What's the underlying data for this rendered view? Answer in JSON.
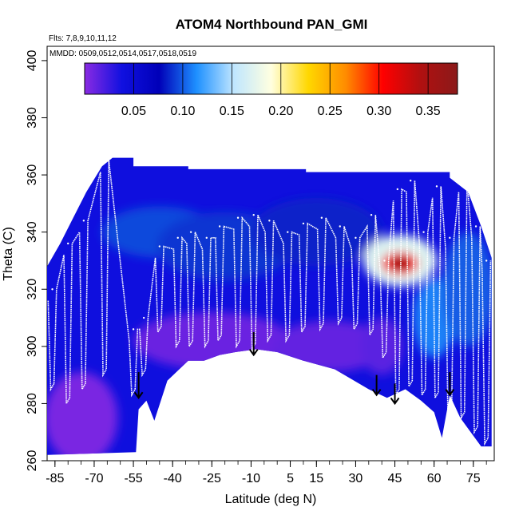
{
  "chart_data": {
    "type": "heatmap",
    "title": "ATOM4 Northbound PAN_GMI",
    "subtitle_lines": [
      "Flts: 7,8,9,10,11,12",
      "MMDD: 0509,0512,0514,0517,0518,0519"
    ],
    "xlabel": "Latitude (deg N)",
    "ylabel": "Theta (C)",
    "xlim": [
      -88,
      83
    ],
    "ylim": [
      260,
      405
    ],
    "x_ticks": [
      -85,
      -70,
      -55,
      -40,
      -25,
      -10,
      5,
      15,
      30,
      45,
      60,
      75
    ],
    "y_ticks": [
      260,
      280,
      300,
      320,
      340,
      360,
      380,
      400
    ],
    "colorbar": {
      "range": [
        0.0,
        0.38
      ],
      "ticks": [
        0.05,
        0.1,
        0.15,
        0.2,
        0.25,
        0.3,
        0.35
      ],
      "tick_labels": [
        "0.05",
        "0.10",
        "0.15",
        "0.20",
        "0.25",
        "0.30",
        "0.35"
      ],
      "colors": [
        "#8a2be2",
        "#1010e0",
        "#0000b8",
        "#1e90ff",
        "#bfe6ff",
        "#ffffe0",
        "#ffd700",
        "#ff8c00",
        "#ff0000",
        "#b01010",
        "#8b1a1a"
      ]
    },
    "surface_boundary": [
      {
        "lat": -88,
        "theta": 262
      },
      {
        "lat": -54,
        "theta": 263
      },
      {
        "lat": -53,
        "theta": 278
      },
      {
        "lat": -50,
        "theta": 281
      },
      {
        "lat": -47,
        "theta": 274
      },
      {
        "lat": -42,
        "theta": 288
      },
      {
        "lat": -34,
        "theta": 295
      },
      {
        "lat": -28,
        "theta": 295
      },
      {
        "lat": -22,
        "theta": 297
      },
      {
        "lat": -16,
        "theta": 298
      },
      {
        "lat": -8,
        "theta": 299
      },
      {
        "lat": 0,
        "theta": 298
      },
      {
        "lat": 10,
        "theta": 295
      },
      {
        "lat": 22,
        "theta": 292
      },
      {
        "lat": 35,
        "theta": 285
      },
      {
        "lat": 42,
        "theta": 282
      },
      {
        "lat": 49,
        "theta": 285
      },
      {
        "lat": 55,
        "theta": 281
      },
      {
        "lat": 60,
        "theta": 277
      },
      {
        "lat": 63,
        "theta": 268
      },
      {
        "lat": 66,
        "theta": 283
      },
      {
        "lat": 70,
        "theta": 275
      },
      {
        "lat": 74,
        "theta": 270
      },
      {
        "lat": 78,
        "theta": 265
      },
      {
        "lat": 82,
        "theta": 265
      }
    ],
    "top_boundary": [
      {
        "lat": -88,
        "theta": 328
      },
      {
        "lat": -83,
        "theta": 336
      },
      {
        "lat": -78,
        "theta": 345
      },
      {
        "lat": -73,
        "theta": 354
      },
      {
        "lat": -67,
        "theta": 363
      },
      {
        "lat": -63,
        "theta": 366
      },
      {
        "lat": -55,
        "theta": 366
      },
      {
        "lat": -55,
        "theta": 363
      },
      {
        "lat": -34,
        "theta": 363
      },
      {
        "lat": -34,
        "theta": 362
      },
      {
        "lat": 11,
        "theta": 362
      },
      {
        "lat": 11,
        "theta": 361
      },
      {
        "lat": 66,
        "theta": 361
      },
      {
        "lat": 66,
        "theta": 359
      },
      {
        "lat": 73,
        "theta": 354
      },
      {
        "lat": 78,
        "theta": 342
      },
      {
        "lat": 82,
        "theta": 331
      }
    ],
    "background_value": 0.04,
    "field_patches": [
      {
        "lat": -75,
        "theta": 275,
        "lat_radius": 14,
        "theta_radius": 16,
        "value": 0.005
      },
      {
        "lat": -25,
        "theta": 302,
        "lat_radius": 30,
        "theta_radius": 10,
        "value": 0.01
      },
      {
        "lat": 20,
        "theta": 300,
        "lat_radius": 22,
        "theta_radius": 9,
        "value": 0.012
      },
      {
        "lat": -45,
        "theta": 340,
        "lat_radius": 22,
        "theta_radius": 9,
        "value": 0.095
      },
      {
        "lat": -20,
        "theta": 335,
        "lat_radius": 26,
        "theta_radius": 12,
        "value": 0.09
      },
      {
        "lat": 15,
        "theta": 340,
        "lat_radius": 25,
        "theta_radius": 12,
        "value": 0.085
      },
      {
        "lat": 47,
        "theta": 330,
        "lat_radius": 14,
        "theta_radius": 9,
        "value": 0.17
      },
      {
        "lat": 47,
        "theta": 329,
        "lat_radius": 7,
        "theta_radius": 4,
        "value": 0.3
      },
      {
        "lat": 47,
        "theta": 329,
        "lat_radius": 4,
        "theta_radius": 2.5,
        "value": 0.36
      },
      {
        "lat": 60,
        "theta": 310,
        "lat_radius": 8,
        "theta_radius": 14,
        "value": 0.11
      },
      {
        "lat": 40,
        "theta": 300,
        "lat_radius": 8,
        "theta_radius": 10,
        "value": 0.015
      },
      {
        "lat": 73,
        "theta": 320,
        "lat_radius": 10,
        "theta_radius": 20,
        "value": 0.1
      }
    ],
    "flight_track_note_source": "white sample dots",
    "profile_spikes": [
      {
        "lat": -86,
        "bottom": 285,
        "top": 320
      },
      {
        "lat": -80,
        "bottom": 280,
        "top": 336
      },
      {
        "lat": -74,
        "bottom": 285,
        "top": 344
      },
      {
        "lat": -66,
        "bottom": 290,
        "top": 365
      },
      {
        "lat": -55,
        "bottom": 283,
        "top": 306
      },
      {
        "lat": -51,
        "bottom": 290,
        "top": 310
      },
      {
        "lat": -45,
        "bottom": 305,
        "top": 335
      },
      {
        "lat": -38,
        "bottom": 300,
        "top": 338
      },
      {
        "lat": -33,
        "bottom": 300,
        "top": 340
      },
      {
        "lat": -27,
        "bottom": 300,
        "top": 338
      },
      {
        "lat": -22,
        "bottom": 302,
        "top": 342
      },
      {
        "lat": -15,
        "bottom": 300,
        "top": 345
      },
      {
        "lat": -9,
        "bottom": 299,
        "top": 346
      },
      {
        "lat": -3,
        "bottom": 302,
        "top": 344
      },
      {
        "lat": 4,
        "bottom": 302,
        "top": 340
      },
      {
        "lat": 10,
        "bottom": 305,
        "top": 343
      },
      {
        "lat": 17,
        "bottom": 306,
        "top": 345
      },
      {
        "lat": 24,
        "bottom": 308,
        "top": 342
      },
      {
        "lat": 30,
        "bottom": 306,
        "top": 338
      },
      {
        "lat": 36,
        "bottom": 304,
        "top": 346
      },
      {
        "lat": 41,
        "bottom": 296,
        "top": 330
      },
      {
        "lat": 46,
        "bottom": 283,
        "top": 355
      },
      {
        "lat": 51,
        "bottom": 286,
        "top": 358
      },
      {
        "lat": 56,
        "bottom": 283,
        "top": 340
      },
      {
        "lat": 61,
        "bottom": 282,
        "top": 356
      },
      {
        "lat": 66,
        "bottom": 270,
        "top": 338
      },
      {
        "lat": 71,
        "bottom": 275,
        "top": 358
      },
      {
        "lat": 76,
        "bottom": 270,
        "top": 342
      },
      {
        "lat": 80,
        "bottom": 266,
        "top": 330
      }
    ],
    "arrows": [
      {
        "lat": -53,
        "theta_top": 291,
        "theta_bottom": 282
      },
      {
        "lat": -9,
        "theta_top": 305,
        "theta_bottom": 297
      },
      {
        "lat": 38,
        "theta_top": 290,
        "theta_bottom": 283
      },
      {
        "lat": 45,
        "theta_top": 287,
        "theta_bottom": 280
      },
      {
        "lat": 66,
        "theta_top": 291,
        "theta_bottom": 283
      }
    ]
  }
}
